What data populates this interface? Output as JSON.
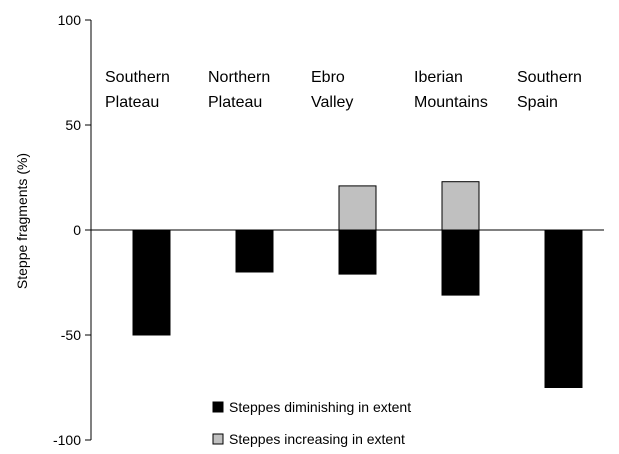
{
  "chart_data": {
    "type": "bar",
    "title": "",
    "xlabel": "",
    "ylabel": "Steppe fragments (%)",
    "ylim": [
      -100,
      100
    ],
    "yticks": [
      100,
      50,
      0,
      -50,
      -100
    ],
    "grid": false,
    "legend_position": "bottom-center",
    "categories": [
      [
        "Southern",
        "Plateau"
      ],
      [
        "Northern",
        "Plateau"
      ],
      [
        "Ebro",
        "Valley"
      ],
      [
        "Iberian",
        "Mountains"
      ],
      [
        "Southern",
        "Spain"
      ]
    ],
    "series": [
      {
        "name": "Steppes diminishing in extent",
        "color": "#000000",
        "values": [
          -50,
          -20,
          -21,
          -31,
          -75
        ]
      },
      {
        "name": "Steppes increasing in extent",
        "color": "#c0c0c0",
        "values": [
          0,
          0,
          21,
          23,
          0
        ]
      }
    ]
  }
}
